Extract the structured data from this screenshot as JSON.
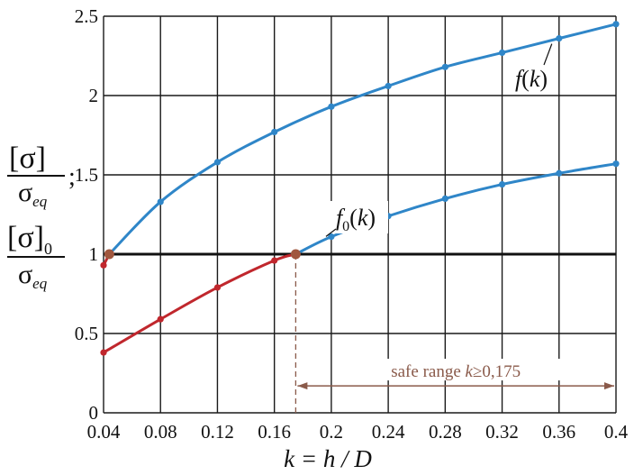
{
  "chart_data": {
    "type": "line",
    "xlabel": "k = h / D",
    "ylabel_top": {
      "numerator": "[σ]",
      "denominator": "σeq",
      "separator": ";"
    },
    "ylabel_bottom": {
      "numerator": "[σ]0",
      "denominator": "σeq"
    },
    "xlim": [
      0.04,
      0.4
    ],
    "ylim": [
      0,
      2.5
    ],
    "x_ticks": [
      0.04,
      0.08,
      0.12,
      0.16,
      0.2,
      0.24,
      0.28,
      0.32,
      0.36,
      0.4
    ],
    "x_tick_labels": [
      "0.04",
      "0.08",
      "0.12",
      "0.16",
      "0.2",
      "0.24",
      "0.28",
      "0.32",
      "0.36",
      "0.4"
    ],
    "y_ticks": [
      0,
      0.5,
      1,
      1.5,
      2,
      2.5
    ],
    "y_tick_labels": [
      "0",
      "0.5",
      "1",
      "1.5",
      "2",
      "2.5"
    ],
    "grid": true,
    "series": [
      {
        "name": "f(k)",
        "color": "#2f86c8",
        "points": [
          [
            0.044,
            1.0
          ],
          [
            0.08,
            1.33
          ],
          [
            0.12,
            1.58
          ],
          [
            0.16,
            1.77
          ],
          [
            0.2,
            1.93
          ],
          [
            0.24,
            2.06
          ],
          [
            0.28,
            2.18
          ],
          [
            0.32,
            2.27
          ],
          [
            0.36,
            2.36
          ],
          [
            0.4,
            2.45
          ]
        ],
        "below_threshold": {
          "color": "#c0272d",
          "points": [
            [
              0.04,
              0.93
            ],
            [
              0.044,
              1.0
            ]
          ]
        }
      },
      {
        "name": "f0(k)",
        "color": "#2f86c8",
        "points": [
          [
            0.175,
            1.0
          ],
          [
            0.2,
            1.11
          ],
          [
            0.24,
            1.24
          ],
          [
            0.28,
            1.35
          ],
          [
            0.32,
            1.44
          ],
          [
            0.36,
            1.51
          ],
          [
            0.4,
            1.57
          ]
        ],
        "below_threshold": {
          "color": "#c0272d",
          "points": [
            [
              0.04,
              0.38
            ],
            [
              0.08,
              0.59
            ],
            [
              0.12,
              0.79
            ],
            [
              0.16,
              0.96
            ],
            [
              0.175,
              1.0
            ]
          ]
        }
      }
    ],
    "reference_line": {
      "y": 1,
      "color": "#111111"
    },
    "intersections": [
      [
        0.044,
        1.0
      ],
      [
        0.175,
        1.0
      ]
    ],
    "intersection_color": "#a0573e",
    "annotation": {
      "text": "safe range",
      "condition_var": "k",
      "condition": "≥0,175",
      "from": 0.175,
      "to": 0.4,
      "y": 0.17,
      "color": "#8a5a4a"
    },
    "series_labels": [
      {
        "base": "f",
        "sub": "",
        "arg": "(k)"
      },
      {
        "base": "f",
        "sub": "0",
        "arg": "(k)"
      }
    ]
  }
}
